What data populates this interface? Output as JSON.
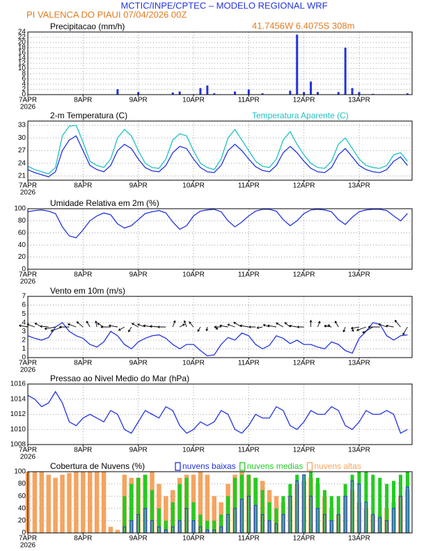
{
  "header": {
    "title": "MCTIC/INPE/CPTEC – MODELO REGIONAL WRF",
    "location": "PI VALENCA DO PIAUI    07/04/2026 00Z",
    "coords": "41.7456W 6.4075S 308m"
  },
  "chart_data": [
    {
      "type": "bar",
      "title": "Precipitacao (mm/h)",
      "color": "#2233dd",
      "x": [
        0,
        3,
        6,
        9,
        12,
        15,
        18,
        21,
        24,
        27,
        30,
        33,
        36,
        39,
        42,
        45,
        48,
        51,
        54,
        57,
        60,
        63,
        66,
        69,
        72,
        75,
        78,
        81,
        84,
        87,
        90,
        93,
        96,
        99,
        102,
        105,
        108,
        111,
        114,
        117,
        120,
        123,
        126,
        129,
        132,
        135,
        138,
        141,
        144,
        147,
        150,
        153,
        156,
        159,
        162,
        165
      ],
      "values": [
        0,
        0,
        0,
        0,
        0,
        0,
        0,
        0,
        0,
        0,
        0,
        0,
        0,
        2.1,
        0,
        0,
        1,
        0,
        0,
        0,
        0,
        0.8,
        1.2,
        0,
        0,
        2.5,
        3.5,
        0.5,
        0,
        0,
        1.2,
        0,
        2,
        0,
        0.5,
        0,
        0,
        0,
        1.5,
        23,
        1,
        5,
        1,
        0,
        0,
        1,
        18,
        2.5,
        1,
        0,
        0.3,
        0,
        0,
        0,
        0,
        0.5
      ],
      "xlim": [
        0,
        167
      ],
      "xticks": [
        {
          "value": 0,
          "label": "7APR"
        },
        {
          "value": 24,
          "label": "8APR"
        },
        {
          "value": 48,
          "label": "9APR"
        },
        {
          "value": 72,
          "label": "10APR"
        },
        {
          "value": 96,
          "label": "11APR"
        },
        {
          "value": 120,
          "label": "12APR"
        },
        {
          "value": 144,
          "label": "13APR"
        }
      ],
      "year_label": "2026",
      "ylim": [
        0,
        24
      ],
      "yticks": [
        0,
        2,
        4,
        6,
        8,
        10,
        12,
        14,
        16,
        18,
        20,
        22,
        24
      ],
      "grid": true
    },
    {
      "type": "line",
      "title": "2-m Temperatura (C)",
      "x": [
        0,
        3,
        6,
        9,
        12,
        15,
        18,
        21,
        24,
        27,
        30,
        33,
        36,
        39,
        42,
        45,
        48,
        51,
        54,
        57,
        60,
        63,
        66,
        69,
        72,
        75,
        78,
        81,
        84,
        87,
        90,
        93,
        96,
        99,
        102,
        105,
        108,
        111,
        114,
        117,
        120,
        123,
        126,
        129,
        132,
        135,
        138,
        141,
        144,
        147,
        150,
        153,
        156,
        159,
        162,
        165
      ],
      "series": [
        {
          "color": "#2233dd",
          "values": [
            22.5,
            21.8,
            21.3,
            20.8,
            22,
            27,
            29.5,
            30.5,
            27,
            23.5,
            22.5,
            22,
            23.5,
            27,
            28.5,
            27.5,
            25,
            23,
            22.2,
            22,
            23.5,
            26.5,
            28,
            27.5,
            25,
            23,
            22,
            21.8,
            23.5,
            27,
            28.5,
            27,
            25,
            23.2,
            22.3,
            22,
            23.5,
            26.5,
            28,
            26.5,
            24.5,
            22.8,
            22,
            21.8,
            23,
            26,
            27.5,
            25.5,
            23.5,
            22.5,
            22,
            21.8,
            22.5,
            24.5,
            25.5,
            23.5
          ]
        },
        {
          "name": "Temperatura Aparente (C)",
          "color": "#20c0c0",
          "values": [
            23.3,
            22.5,
            22,
            21.5,
            23,
            30.5,
            32.8,
            33,
            29,
            24.5,
            23.5,
            23,
            25,
            30,
            32,
            30.5,
            27,
            24,
            23,
            22.8,
            25,
            29.5,
            31,
            30.5,
            27,
            24,
            23,
            22.5,
            25,
            30,
            32,
            29.5,
            27,
            24.5,
            23.3,
            23,
            25,
            29.5,
            31.5,
            28.5,
            26,
            24,
            23,
            22.8,
            24.5,
            28.5,
            30,
            27.5,
            25,
            23.5,
            23,
            22.8,
            23.5,
            26,
            26.5,
            24.5
          ]
        }
      ],
      "xlim": [
        0,
        167
      ],
      "xticks": [
        {
          "value": 0,
          "label": "7APR"
        },
        {
          "value": 24,
          "label": "8APR"
        },
        {
          "value": 48,
          "label": "9APR"
        },
        {
          "value": 72,
          "label": "10APR"
        },
        {
          "value": 96,
          "label": "11APR"
        },
        {
          "value": 120,
          "label": "12APR"
        },
        {
          "value": 144,
          "label": "13APR"
        }
      ],
      "year_label": "2026",
      "ylim": [
        20,
        34
      ],
      "yticks": [
        21,
        24,
        27,
        30,
        33
      ],
      "grid": true
    },
    {
      "type": "line",
      "title": "Umidade Relativa em 2m (%)",
      "x": [
        0,
        3,
        6,
        9,
        12,
        15,
        18,
        21,
        24,
        27,
        30,
        33,
        36,
        39,
        42,
        45,
        48,
        51,
        54,
        57,
        60,
        63,
        66,
        69,
        72,
        75,
        78,
        81,
        84,
        87,
        90,
        93,
        96,
        99,
        102,
        105,
        108,
        111,
        114,
        117,
        120,
        123,
        126,
        129,
        132,
        135,
        138,
        141,
        144,
        147,
        150,
        153,
        156,
        159,
        162,
        165
      ],
      "series": [
        {
          "color": "#2233dd",
          "values": [
            95,
            97,
            98,
            96,
            92,
            70,
            55,
            52,
            65,
            80,
            88,
            93,
            90,
            75,
            68,
            72,
            82,
            92,
            95,
            97,
            93,
            78,
            66,
            72,
            88,
            96,
            98,
            99,
            95,
            80,
            70,
            78,
            88,
            96,
            99,
            99,
            96,
            82,
            72,
            80,
            92,
            98,
            99,
            98,
            95,
            82,
            74,
            86,
            95,
            98,
            99,
            99,
            97,
            88,
            80,
            92
          ]
        }
      ],
      "xlim": [
        0,
        167
      ],
      "xticks": [
        {
          "value": 0,
          "label": "7APR"
        },
        {
          "value": 24,
          "label": "8APR"
        },
        {
          "value": 48,
          "label": "9APR"
        },
        {
          "value": 72,
          "label": "10APR"
        },
        {
          "value": 96,
          "label": "11APR"
        },
        {
          "value": 120,
          "label": "12APR"
        },
        {
          "value": 144,
          "label": "13APR"
        }
      ],
      "year_label": "2026",
      "ylim": [
        0,
        100
      ],
      "yticks": [
        0,
        20,
        40,
        60,
        80,
        100
      ],
      "grid": true
    },
    {
      "type": "line",
      "title": "Vento em 10m (m/s)",
      "x": [
        0,
        3,
        6,
        9,
        12,
        15,
        18,
        21,
        24,
        27,
        30,
        33,
        36,
        39,
        42,
        45,
        48,
        51,
        54,
        57,
        60,
        63,
        66,
        69,
        72,
        75,
        78,
        81,
        84,
        87,
        90,
        93,
        96,
        99,
        102,
        105,
        108,
        111,
        114,
        117,
        120,
        123,
        126,
        129,
        132,
        135,
        138,
        141,
        144,
        147,
        150,
        153,
        156,
        159,
        162,
        165
      ],
      "series": [
        {
          "color": "#2233dd",
          "values": [
            2.5,
            2.2,
            2,
            2.3,
            3.5,
            4,
            3,
            2.5,
            2.2,
            1.5,
            1.2,
            1.8,
            3,
            2.5,
            1.5,
            1,
            1.8,
            2.2,
            2.5,
            2.6,
            2.2,
            1.5,
            1,
            1.5,
            1.5,
            0.8,
            0.2,
            0.3,
            1.5,
            2.3,
            2,
            2.8,
            2.5,
            1.5,
            1,
            1.4,
            2.5,
            2.2,
            1.6,
            2,
            1.5,
            1.5,
            1.2,
            1,
            1.8,
            1.5,
            0.8,
            0.5,
            2.2,
            3,
            4,
            3.8,
            2.5,
            2,
            2.5,
            2.6
          ]
        }
      ],
      "wind_direction": [
        100,
        110,
        120,
        95,
        80,
        70,
        90,
        110,
        130,
        150,
        170,
        120,
        90,
        100,
        60,
        30,
        120,
        110,
        100,
        95,
        90,
        200,
        240,
        160,
        140,
        30,
        10,
        300,
        90,
        100,
        110,
        120,
        100,
        90,
        80,
        110,
        100,
        120,
        130,
        100,
        90,
        180,
        200,
        250,
        100,
        150,
        20,
        350,
        80,
        70,
        60,
        90,
        110,
        100,
        140,
        30
      ],
      "xlim": [
        0,
        167
      ],
      "xticks": [
        {
          "value": 0,
          "label": "7APR"
        },
        {
          "value": 24,
          "label": "8APR"
        },
        {
          "value": 48,
          "label": "9APR"
        },
        {
          "value": 72,
          "label": "10APR"
        },
        {
          "value": 96,
          "label": "11APR"
        },
        {
          "value": 120,
          "label": "12APR"
        },
        {
          "value": 144,
          "label": "13APR"
        }
      ],
      "year_label": "2026",
      "ylim": [
        0,
        7
      ],
      "yticks": [
        0,
        1,
        2,
        3,
        4,
        5,
        6,
        7
      ],
      "grid": true
    },
    {
      "type": "line",
      "title": "Pressao ao Nivel Medio do Mar (hPa)",
      "x": [
        0,
        3,
        6,
        9,
        12,
        15,
        18,
        21,
        24,
        27,
        30,
        33,
        36,
        39,
        42,
        45,
        48,
        51,
        54,
        57,
        60,
        63,
        66,
        69,
        72,
        75,
        78,
        81,
        84,
        87,
        90,
        93,
        96,
        99,
        102,
        105,
        108,
        111,
        114,
        117,
        120,
        123,
        126,
        129,
        132,
        135,
        138,
        141,
        144,
        147,
        150,
        153,
        156,
        159,
        162,
        165
      ],
      "series": [
        {
          "color": "#2233dd",
          "values": [
            1014.5,
            1014,
            1013,
            1013.5,
            1015,
            1013.5,
            1011,
            1010.5,
            1011.5,
            1012,
            1011.5,
            1011,
            1012.5,
            1012,
            1010,
            1009.5,
            1011,
            1012.5,
            1012,
            1011.5,
            1013,
            1012.5,
            1010.5,
            1009.5,
            1010,
            1011,
            1010.5,
            1011,
            1012.5,
            1012,
            1010,
            1009.5,
            1010.5,
            1012,
            1011.5,
            1011.5,
            1013,
            1012.5,
            1010.5,
            1010,
            1011,
            1012.5,
            1012,
            1012,
            1013,
            1012.5,
            1010.5,
            1010,
            1011,
            1012.5,
            1012,
            1012,
            1012.5,
            1012,
            1009.5,
            1010
          ]
        }
      ],
      "xlim": [
        0,
        167
      ],
      "xticks": [
        {
          "value": 0,
          "label": "7APR"
        },
        {
          "value": 24,
          "label": "8APR"
        },
        {
          "value": 48,
          "label": "9APR"
        },
        {
          "value": 72,
          "label": "10APR"
        },
        {
          "value": 96,
          "label": "11APR"
        },
        {
          "value": 120,
          "label": "12APR"
        },
        {
          "value": 144,
          "label": "13APR"
        }
      ],
      "year_label": "2026",
      "ylim": [
        1008,
        1016
      ],
      "yticks": [
        1008,
        1010,
        1012,
        1014,
        1016
      ],
      "grid": true
    },
    {
      "type": "bar",
      "title": "Cobertura de Nuvens (%)",
      "x": [
        0,
        3,
        6,
        9,
        12,
        15,
        18,
        21,
        24,
        27,
        30,
        33,
        36,
        39,
        42,
        45,
        48,
        51,
        54,
        57,
        60,
        63,
        66,
        69,
        72,
        75,
        78,
        81,
        84,
        87,
        90,
        93,
        96,
        99,
        102,
        105,
        108,
        111,
        114,
        117,
        120,
        123,
        126,
        129,
        132,
        135,
        138,
        141,
        144,
        147,
        150,
        153,
        156,
        159,
        162,
        165
      ],
      "series": [
        {
          "name": "nuvens baixas",
          "color": "#2233dd",
          "filled": false,
          "values": [
            0,
            0,
            0,
            0,
            0,
            0,
            0,
            0,
            0,
            0,
            0,
            0,
            0,
            0,
            10,
            20,
            30,
            40,
            20,
            10,
            5,
            10,
            20,
            40,
            20,
            10,
            5,
            5,
            10,
            30,
            40,
            55,
            60,
            45,
            30,
            20,
            15,
            30,
            60,
            85,
            95,
            60,
            40,
            30,
            20,
            30,
            60,
            85,
            80,
            50,
            30,
            25,
            20,
            40,
            60,
            75
          ]
        },
        {
          "name": "nuvens medias",
          "color": "#22cc22",
          "filled": true,
          "values": [
            0,
            0,
            0,
            0,
            0,
            0,
            0,
            0,
            0,
            0,
            0,
            0,
            0,
            0,
            60,
            80,
            90,
            95,
            70,
            40,
            20,
            50,
            80,
            90,
            50,
            30,
            20,
            20,
            30,
            60,
            90,
            95,
            95,
            90,
            70,
            50,
            40,
            60,
            80,
            95,
            95,
            100,
            90,
            70,
            60,
            60,
            80,
            95,
            100,
            100,
            95,
            90,
            80,
            85,
            95,
            100
          ]
        },
        {
          "name": "nuvens altas",
          "color": "#f4a460",
          "filled": true,
          "values": [
            100,
            100,
            100,
            95,
            90,
            95,
            98,
            100,
            100,
            100,
            100,
            100,
            10,
            5,
            95,
            90,
            90,
            95,
            100,
            80,
            60,
            70,
            90,
            95,
            95,
            100,
            95,
            60,
            50,
            80,
            95,
            100,
            95,
            90,
            85,
            70,
            60,
            50,
            60,
            80,
            85,
            90,
            80,
            60,
            40,
            30,
            60,
            70,
            50,
            40,
            30,
            30,
            40,
            50,
            60,
            70
          ]
        }
      ],
      "xlim": [
        0,
        167
      ],
      "xticks": [
        {
          "value": 0,
          "label": "7APR"
        },
        {
          "value": 24,
          "label": "8APR"
        },
        {
          "value": 48,
          "label": "9APR"
        },
        {
          "value": 72,
          "label": "10APR"
        },
        {
          "value": 96,
          "label": "11APR"
        },
        {
          "value": 120,
          "label": "12APR"
        },
        {
          "value": 144,
          "label": "13APR"
        }
      ],
      "year_label": "2026",
      "ylim": [
        0,
        100
      ],
      "yticks": [
        0,
        20,
        40,
        60,
        80,
        100
      ],
      "grid": true
    }
  ]
}
